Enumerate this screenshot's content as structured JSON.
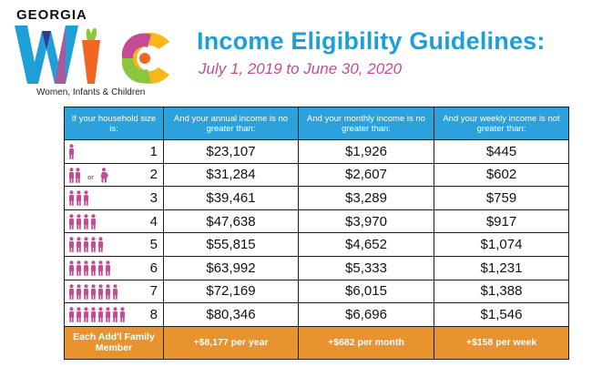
{
  "logo": {
    "state": "GEORGIA",
    "tagline": "Women, Infants & Children",
    "colors": {
      "w": "#1f9fd8",
      "i": "#8cc63f",
      "c": "#f26522",
      "accent": "#c24d94"
    }
  },
  "title": "Income Eligibility Guidelines:",
  "subtitle": "July 1, 2019 to June 30, 2020",
  "table": {
    "headers": [
      "If your household size is:",
      "And your annual income is no greater than:",
      "And your monthly income is no greater than:",
      "And your weekly income is not greater than:"
    ],
    "rows": [
      {
        "size": "1",
        "annual": "$23,107",
        "monthly": "$1,926",
        "weekly": "$445"
      },
      {
        "size": "2",
        "annual": "$31,284",
        "monthly": "$2,607",
        "weekly": "$602"
      },
      {
        "size": "3",
        "annual": "$39,461",
        "monthly": "$3,289",
        "weekly": "$759"
      },
      {
        "size": "4",
        "annual": "$47,638",
        "monthly": "$3,970",
        "weekly": "$917"
      },
      {
        "size": "5",
        "annual": "$55,815",
        "monthly": "$4,652",
        "weekly": "$1,074"
      },
      {
        "size": "6",
        "annual": "$63,992",
        "monthly": "$5,333",
        "weekly": "$1,231"
      },
      {
        "size": "7",
        "annual": "$72,169",
        "monthly": "$6,015",
        "weekly": "$1,388"
      },
      {
        "size": "8",
        "annual": "$80,346",
        "monthly": "$6,696",
        "weekly": "$1,546"
      }
    ],
    "row2_or": "or",
    "footer": {
      "label": "Each Add'l Family Member",
      "annual": "+$8,177 per year",
      "monthly": "+$682 per month",
      "weekly": "+$158 per week"
    },
    "colors": {
      "header": "#2ca1db",
      "footer": "#e8932d",
      "person": "#c24d94"
    }
  }
}
